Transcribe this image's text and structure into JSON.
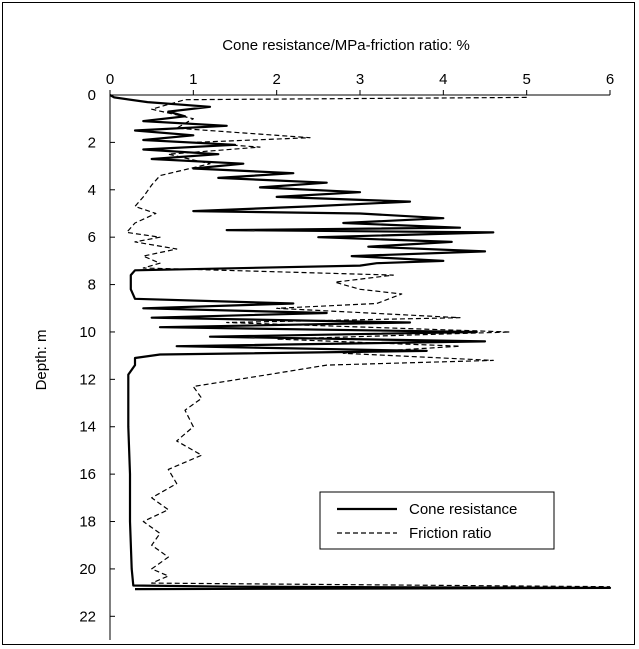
{
  "chart_data": {
    "type": "line",
    "title": "Cone resistance/MPa-friction ratio: %",
    "xlabel": "Cone resistance/MPa-friction ratio: %",
    "ylabel": "Depth: m",
    "x_ticks": [
      "0",
      "1",
      "2",
      "3",
      "4",
      "5",
      "6"
    ],
    "y_ticks": [
      "0",
      "2",
      "4",
      "6",
      "8",
      "10",
      "12",
      "14",
      "16",
      "18",
      "20",
      "22"
    ],
    "xlim": [
      0,
      6
    ],
    "ylim": [
      0,
      22
    ],
    "y_inverted": true,
    "x_axis_position": "top",
    "grid": false,
    "legend_position": "lower-right",
    "series": [
      {
        "name": "Cone resistance",
        "style": "solid",
        "color": "#000000",
        "points": [
          [
            0.0,
            0.0
          ],
          [
            0.05,
            0.1
          ],
          [
            0.45,
            0.3
          ],
          [
            1.2,
            0.5
          ],
          [
            0.7,
            0.7
          ],
          [
            0.9,
            0.9
          ],
          [
            0.4,
            1.1
          ],
          [
            1.4,
            1.3
          ],
          [
            0.3,
            1.5
          ],
          [
            1.0,
            1.7
          ],
          [
            0.4,
            1.9
          ],
          [
            1.5,
            2.1
          ],
          [
            0.4,
            2.3
          ],
          [
            1.3,
            2.5
          ],
          [
            0.5,
            2.7
          ],
          [
            1.6,
            2.9
          ],
          [
            1.0,
            3.1
          ],
          [
            2.2,
            3.3
          ],
          [
            1.3,
            3.5
          ],
          [
            2.6,
            3.7
          ],
          [
            1.8,
            3.9
          ],
          [
            3.0,
            4.1
          ],
          [
            2.0,
            4.3
          ],
          [
            3.6,
            4.5
          ],
          [
            2.4,
            4.7
          ],
          [
            1.0,
            4.9
          ],
          [
            3.0,
            5.0
          ],
          [
            4.0,
            5.2
          ],
          [
            2.8,
            5.4
          ],
          [
            4.2,
            5.6
          ],
          [
            1.4,
            5.7
          ],
          [
            4.6,
            5.8
          ],
          [
            2.5,
            6.0
          ],
          [
            4.1,
            6.2
          ],
          [
            3.1,
            6.4
          ],
          [
            4.5,
            6.6
          ],
          [
            2.9,
            6.8
          ],
          [
            4.0,
            7.0
          ],
          [
            3.2,
            7.1
          ],
          [
            3.0,
            7.2
          ],
          [
            0.3,
            7.4
          ],
          [
            0.25,
            7.6
          ],
          [
            0.25,
            8.2
          ],
          [
            0.3,
            8.6
          ],
          [
            2.2,
            8.8
          ],
          [
            0.4,
            9.0
          ],
          [
            2.6,
            9.2
          ],
          [
            0.5,
            9.4
          ],
          [
            3.6,
            9.6
          ],
          [
            0.6,
            9.8
          ],
          [
            4.4,
            10.0
          ],
          [
            1.2,
            10.2
          ],
          [
            4.5,
            10.4
          ],
          [
            0.8,
            10.6
          ],
          [
            3.8,
            10.8
          ],
          [
            0.6,
            10.95
          ],
          [
            0.3,
            11.1
          ],
          [
            0.3,
            11.4
          ],
          [
            0.22,
            11.8
          ],
          [
            0.22,
            14.0
          ],
          [
            0.24,
            16.0
          ],
          [
            0.24,
            18.0
          ],
          [
            0.26,
            20.0
          ],
          [
            0.28,
            20.7
          ],
          [
            1.5,
            20.75
          ],
          [
            6.0,
            20.8
          ],
          [
            0.3,
            20.85
          ]
        ]
      },
      {
        "name": "Friction ratio",
        "style": "dashed",
        "color": "#000000",
        "points": [
          [
            5.0,
            0.1
          ],
          [
            0.9,
            0.2
          ],
          [
            0.5,
            0.6
          ],
          [
            1.0,
            1.0
          ],
          [
            0.8,
            1.4
          ],
          [
            2.4,
            1.8
          ],
          [
            1.0,
            2.0
          ],
          [
            1.8,
            2.2
          ],
          [
            0.7,
            2.5
          ],
          [
            1.2,
            2.9
          ],
          [
            0.6,
            3.4
          ],
          [
            0.5,
            3.8
          ],
          [
            0.4,
            4.3
          ],
          [
            0.3,
            4.7
          ],
          [
            0.55,
            5.0
          ],
          [
            0.3,
            5.4
          ],
          [
            0.2,
            5.8
          ],
          [
            0.6,
            6.0
          ],
          [
            0.3,
            6.2
          ],
          [
            0.8,
            6.5
          ],
          [
            0.4,
            6.8
          ],
          [
            0.6,
            7.1
          ],
          [
            0.4,
            7.3
          ],
          [
            3.4,
            7.6
          ],
          [
            2.7,
            7.9
          ],
          [
            3.0,
            8.2
          ],
          [
            3.5,
            8.4
          ],
          [
            3.2,
            8.8
          ],
          [
            2.0,
            9.0
          ],
          [
            4.2,
            9.4
          ],
          [
            1.4,
            9.6
          ],
          [
            4.8,
            10.0
          ],
          [
            2.0,
            10.3
          ],
          [
            4.2,
            10.6
          ],
          [
            2.8,
            10.9
          ],
          [
            4.6,
            11.2
          ],
          [
            2.6,
            11.4
          ],
          [
            1.9,
            11.8
          ],
          [
            1.0,
            12.3
          ],
          [
            1.1,
            12.8
          ],
          [
            0.9,
            13.3
          ],
          [
            1.0,
            14.0
          ],
          [
            0.8,
            14.6
          ],
          [
            1.1,
            15.2
          ],
          [
            0.7,
            15.8
          ],
          [
            0.8,
            16.4
          ],
          [
            0.5,
            17.0
          ],
          [
            0.7,
            17.5
          ],
          [
            0.4,
            18.0
          ],
          [
            0.6,
            18.5
          ],
          [
            0.5,
            19.0
          ],
          [
            0.7,
            19.5
          ],
          [
            0.5,
            20.0
          ],
          [
            0.7,
            20.3
          ],
          [
            0.5,
            20.6
          ],
          [
            6.0,
            20.75
          ]
        ]
      }
    ]
  },
  "legend": {
    "items": [
      {
        "label": "Cone resistance",
        "style": "solid"
      },
      {
        "label": "Friction ratio",
        "style": "dashed"
      }
    ]
  }
}
